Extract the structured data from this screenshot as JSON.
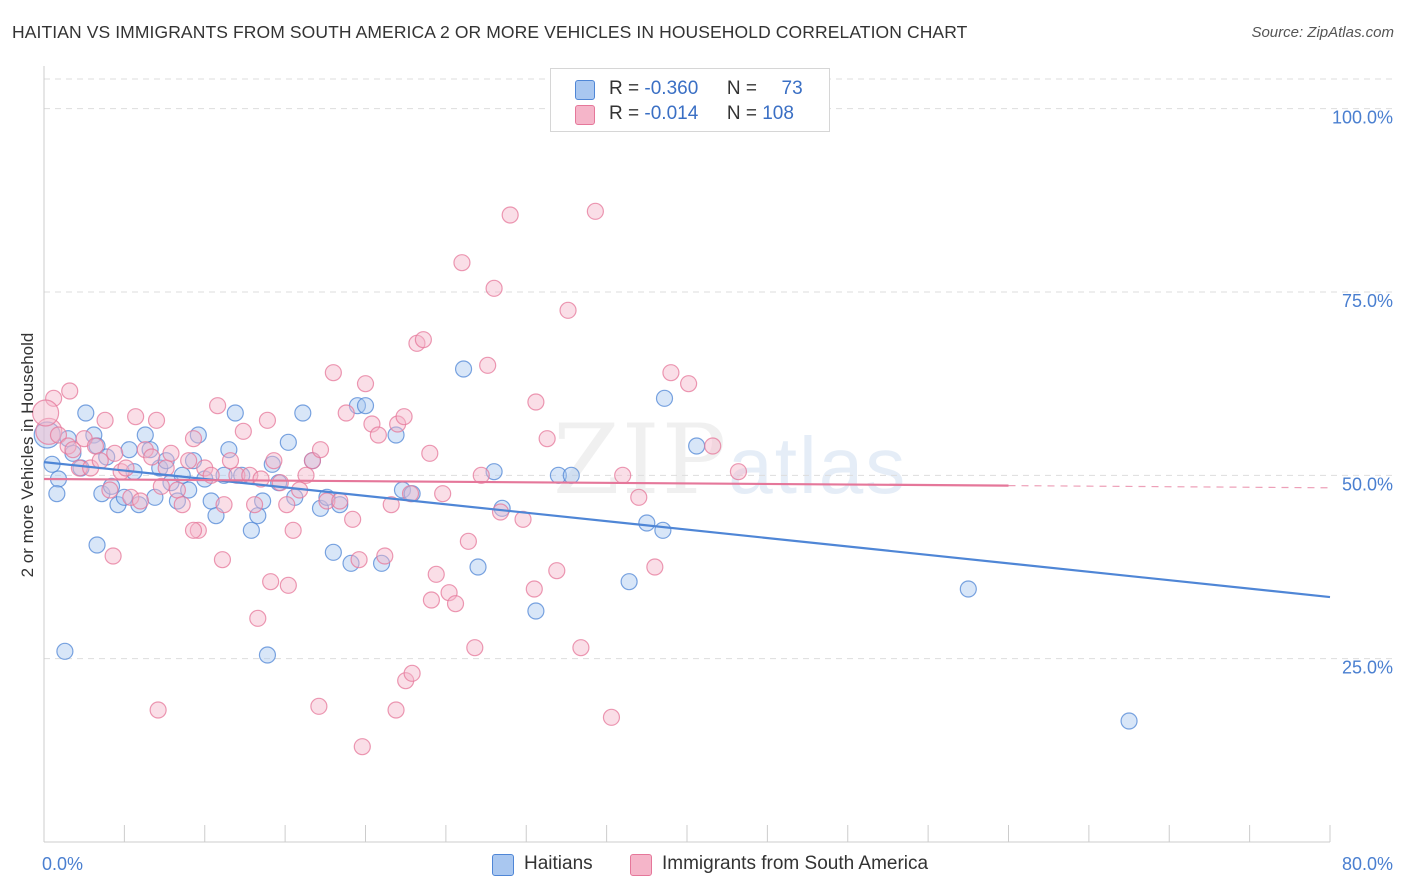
{
  "title": "HAITIAN VS IMMIGRANTS FROM SOUTH AMERICA 2 OR MORE VEHICLES IN HOUSEHOLD CORRELATION CHART",
  "source": "Source: ZipAtlas.com",
  "watermark": {
    "zip": "ZIP",
    "atlas": "atlas"
  },
  "legend": {
    "rows": [
      {
        "r_label": "R =",
        "r_value": "-0.360",
        "n_label": "N =",
        "n_value": "73",
        "color": "#a9c7f0"
      },
      {
        "r_label": "R =",
        "r_value": "-0.014",
        "n_label": "N =",
        "n_value": "108",
        "color": "#f5b5c9"
      }
    ]
  },
  "bottom_legend": [
    {
      "label": "Haitians",
      "color": "#a9c7f0"
    },
    {
      "label": "Immigrants from South America",
      "color": "#f5b5c9"
    }
  ],
  "chart_data": {
    "type": "scatter",
    "title": "HAITIAN VS IMMIGRANTS FROM SOUTH AMERICA 2 OR MORE VEHICLES IN HOUSEHOLD CORRELATION CHART",
    "xlabel": "",
    "ylabel": "2 or more Vehicles in Household",
    "xlim": [
      0,
      80
    ],
    "ylim": [
      0,
      105
    ],
    "x_tick_labels": [
      "0.0%",
      "80.0%"
    ],
    "y_ticks": [
      25,
      50,
      75,
      100
    ],
    "y_tick_labels": [
      "25.0%",
      "50.0%",
      "75.0%",
      "100.0%"
    ],
    "grid": true,
    "series": [
      {
        "name": "Haitians",
        "color": "#4f86d6",
        "fill": "#a9c7f0",
        "trend": {
          "x": [
            0,
            80
          ],
          "y": [
            51.8,
            33.4
          ],
          "dashed_from": null
        },
        "points": [
          [
            0.2,
            55.5
          ],
          [
            0.5,
            51.5
          ],
          [
            0.9,
            49.5
          ],
          [
            1.5,
            55
          ],
          [
            1.8,
            53
          ],
          [
            2.3,
            51
          ],
          [
            2.6,
            58.5
          ],
          [
            3.1,
            55.5
          ],
          [
            3.3,
            54
          ],
          [
            3.6,
            47.5
          ],
          [
            3.9,
            52.5
          ],
          [
            4.2,
            48.5
          ],
          [
            4.6,
            46
          ],
          [
            5.0,
            47
          ],
          [
            5.3,
            53.5
          ],
          [
            5.6,
            50.5
          ],
          [
            5.9,
            46
          ],
          [
            6.3,
            55.5
          ],
          [
            6.6,
            53.5
          ],
          [
            6.9,
            47
          ],
          [
            7.2,
            51
          ],
          [
            7.6,
            52
          ],
          [
            7.9,
            49
          ],
          [
            8.3,
            46.5
          ],
          [
            8.6,
            50
          ],
          [
            9.0,
            48
          ],
          [
            9.3,
            52
          ],
          [
            9.6,
            55.5
          ],
          [
            10.0,
            49.5
          ],
          [
            10.4,
            46.5
          ],
          [
            10.7,
            44.5
          ],
          [
            11.2,
            50
          ],
          [
            11.5,
            53.5
          ],
          [
            11.9,
            58.5
          ],
          [
            12.3,
            50
          ],
          [
            12.9,
            42.5
          ],
          [
            13.3,
            44.5
          ],
          [
            13.6,
            46.5
          ],
          [
            14.2,
            51.5
          ],
          [
            14.6,
            49
          ],
          [
            15.2,
            54.5
          ],
          [
            15.6,
            47
          ],
          [
            16.1,
            58.5
          ],
          [
            16.7,
            52
          ],
          [
            17.2,
            45.5
          ],
          [
            17.6,
            47
          ],
          [
            18.0,
            39.5
          ],
          [
            18.4,
            46
          ],
          [
            19.1,
            38
          ],
          [
            19.5,
            59.5
          ],
          [
            20.0,
            59.5
          ],
          [
            21.0,
            38
          ],
          [
            21.9,
            55.5
          ],
          [
            22.3,
            48
          ],
          [
            22.9,
            47.5
          ],
          [
            26.1,
            64.5
          ],
          [
            27.0,
            37.5
          ],
          [
            28.0,
            50.5
          ],
          [
            28.5,
            45.5
          ],
          [
            30.6,
            31.5
          ],
          [
            32.0,
            50
          ],
          [
            32.8,
            50
          ],
          [
            36.4,
            35.5
          ],
          [
            37.5,
            43.5
          ],
          [
            38.5,
            42.5
          ],
          [
            38.6,
            60.5
          ],
          [
            40.6,
            54
          ],
          [
            57.5,
            34.5
          ],
          [
            67.5,
            16.5
          ],
          [
            1.3,
            26
          ],
          [
            13.9,
            25.5
          ],
          [
            3.3,
            40.5
          ],
          [
            0.8,
            47.5
          ]
        ]
      },
      {
        "name": "Immigrants from South America",
        "color": "#e5779a",
        "fill": "#f5b5c9",
        "trend": {
          "x": [
            0,
            80
          ],
          "y": [
            49.5,
            48.3
          ],
          "dashed_from": 60
        },
        "points": [
          [
            0.3,
            56
          ],
          [
            0.6,
            60.5
          ],
          [
            0.9,
            55.5
          ],
          [
            1.5,
            54
          ],
          [
            1.8,
            53.5
          ],
          [
            2.2,
            51
          ],
          [
            2.5,
            55
          ],
          [
            2.9,
            51
          ],
          [
            3.2,
            54
          ],
          [
            3.5,
            52
          ],
          [
            3.8,
            57.5
          ],
          [
            4.1,
            48
          ],
          [
            4.4,
            53
          ],
          [
            4.8,
            50.5
          ],
          [
            5.1,
            51
          ],
          [
            5.4,
            47
          ],
          [
            5.7,
            58
          ],
          [
            6.0,
            46.5
          ],
          [
            6.3,
            53.5
          ],
          [
            6.7,
            52.5
          ],
          [
            7.0,
            57.5
          ],
          [
            7.3,
            48.5
          ],
          [
            7.6,
            51
          ],
          [
            7.9,
            53
          ],
          [
            8.3,
            48
          ],
          [
            8.6,
            46
          ],
          [
            9.0,
            52
          ],
          [
            9.3,
            55
          ],
          [
            9.6,
            42.5
          ],
          [
            10.0,
            51
          ],
          [
            10.4,
            50
          ],
          [
            10.8,
            59.5
          ],
          [
            11.2,
            46
          ],
          [
            11.6,
            52
          ],
          [
            12.0,
            50
          ],
          [
            12.4,
            56
          ],
          [
            12.8,
            50
          ],
          [
            13.1,
            46
          ],
          [
            13.5,
            49.5
          ],
          [
            13.9,
            57.5
          ],
          [
            14.3,
            52
          ],
          [
            14.7,
            49
          ],
          [
            15.1,
            46
          ],
          [
            15.5,
            42.5
          ],
          [
            15.9,
            48
          ],
          [
            16.3,
            50
          ],
          [
            16.7,
            52
          ],
          [
            17.2,
            53.5
          ],
          [
            17.6,
            46.5
          ],
          [
            18.0,
            64
          ],
          [
            18.4,
            46.5
          ],
          [
            18.8,
            58.5
          ],
          [
            19.2,
            44
          ],
          [
            19.6,
            38.5
          ],
          [
            20.0,
            62.5
          ],
          [
            20.4,
            57
          ],
          [
            20.8,
            55.5
          ],
          [
            21.2,
            39
          ],
          [
            21.6,
            46
          ],
          [
            22.0,
            57
          ],
          [
            22.4,
            58
          ],
          [
            22.8,
            47.5
          ],
          [
            23.2,
            68
          ],
          [
            23.6,
            68.5
          ],
          [
            24.0,
            53
          ],
          [
            24.4,
            36.5
          ],
          [
            24.8,
            47.5
          ],
          [
            25.2,
            34
          ],
          [
            25.6,
            32.5
          ],
          [
            26.0,
            79
          ],
          [
            26.4,
            41
          ],
          [
            26.8,
            26.5
          ],
          [
            27.2,
            50
          ],
          [
            27.6,
            65
          ],
          [
            28.0,
            75.5
          ],
          [
            28.4,
            45
          ],
          [
            29.0,
            85.5
          ],
          [
            29.8,
            44
          ],
          [
            30.6,
            60
          ],
          [
            31.3,
            55
          ],
          [
            31.9,
            37
          ],
          [
            32.6,
            72.5
          ],
          [
            33.4,
            26.5
          ],
          [
            34.3,
            86
          ],
          [
            35.3,
            17
          ],
          [
            36.0,
            50
          ],
          [
            37.0,
            47
          ],
          [
            38.0,
            37.5
          ],
          [
            39.0,
            64
          ],
          [
            40.1,
            62.5
          ],
          [
            41.6,
            54
          ],
          [
            1.6,
            61.5
          ],
          [
            4.3,
            39
          ],
          [
            7.1,
            18
          ],
          [
            11.1,
            38.5
          ],
          [
            13.3,
            30.5
          ],
          [
            14.1,
            35.5
          ],
          [
            15.2,
            35
          ],
          [
            17.1,
            18.5
          ],
          [
            19.8,
            13
          ],
          [
            21.9,
            18
          ],
          [
            22.5,
            22
          ],
          [
            22.9,
            23
          ],
          [
            24.1,
            33
          ],
          [
            30.5,
            34.5
          ],
          [
            43.2,
            50.5
          ],
          [
            0.1,
            58.5
          ],
          [
            9.3,
            42.5
          ]
        ]
      }
    ]
  }
}
